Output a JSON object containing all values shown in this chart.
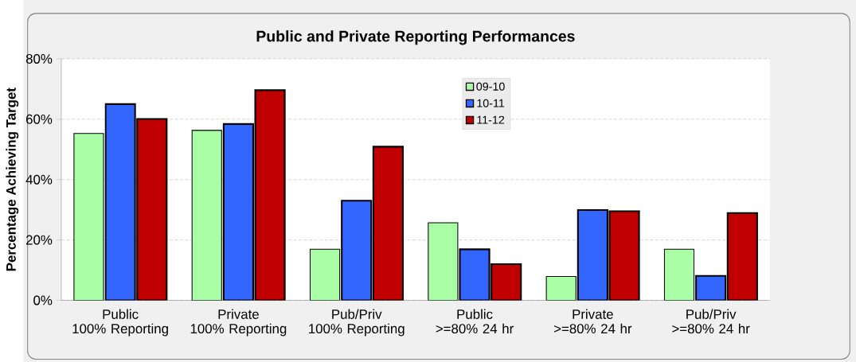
{
  "chart_data": {
    "type": "bar",
    "title": "Public and Private Reporting Performances",
    "ylabel": "Percentage Achieving Target",
    "categories": [
      "Public\n100% Reporting",
      "Private\n100% Reporting",
      "Pub/Priv\n100% Reporting",
      "Public\n>=80% 24 hr",
      "Private\n>=80% 24 hr",
      "Pub/Priv\n>=80% 24 hr"
    ],
    "series": [
      {
        "name": "09-10",
        "color": "#aaffa6",
        "values": [
          55.3,
          56.3,
          16.9,
          25.7,
          7.9,
          16.9
        ]
      },
      {
        "name": "10-11",
        "color": "#3366ff",
        "values": [
          65.0,
          58.4,
          33.0,
          16.9,
          29.9,
          8.1
        ]
      },
      {
        "name": "11-12",
        "color": "#c00000",
        "values": [
          60.1,
          69.6,
          50.9,
          12.0,
          29.5,
          28.9
        ]
      }
    ],
    "ylim": [
      0,
      80
    ],
    "yticks": [
      {
        "value": 0,
        "label": "0%"
      },
      {
        "value": 20,
        "label": "20%"
      },
      {
        "value": 40,
        "label": "40%"
      },
      {
        "value": 60,
        "label": "60%"
      },
      {
        "value": 80,
        "label": "80%"
      }
    ],
    "grid": "y",
    "legend": "top"
  }
}
